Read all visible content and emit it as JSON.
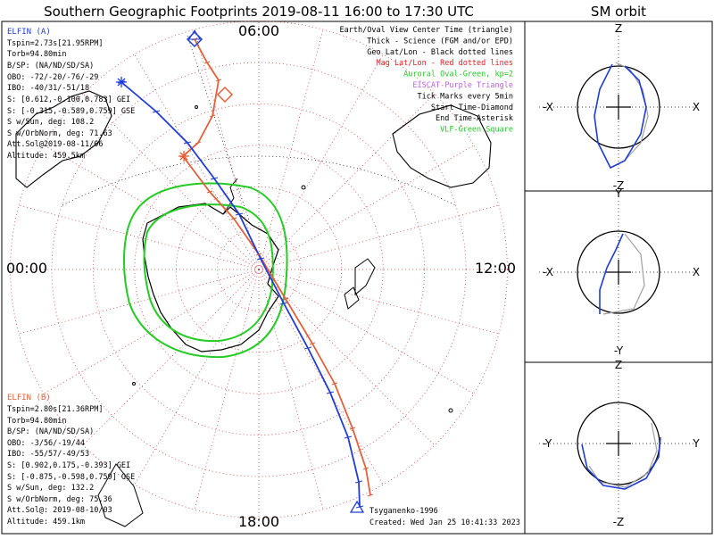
{
  "title": "Southern Geographic Footprints 2019-08-11 16:00 to 17:30 UTC",
  "orbit_title": "SM orbit",
  "colors": {
    "elfin_a": "#1f3dd6",
    "elfin_b": "#e0613a",
    "oval": "#22cc22",
    "grid": "#d04040",
    "purple": "#c060e0"
  },
  "time_labels": {
    "top": "06:00",
    "left": "00:00",
    "right": "12:00",
    "bottom": "18:00"
  },
  "legend": [
    {
      "text": "Earth/Oval View Center Time (triangle)",
      "color": "#000000"
    },
    {
      "text": "Thick - Science (FGM and/or EPD)",
      "color": "#000000"
    },
    {
      "text": "Geo Lat/Lon - Black dotted lines",
      "color": "#000000"
    },
    {
      "text": "Mag Lat/Lon - Red dotted lines",
      "color": "#e02020"
    },
    {
      "text": "Auroral Oval-Green, kp=2",
      "color": "#22cc22"
    },
    {
      "text": "EISCAT-Purple Triangle",
      "color": "#c060e0"
    },
    {
      "text": "Tick Marks every 5min",
      "color": "#000000"
    },
    {
      "text": "Start Time-Diamond",
      "color": "#000000"
    },
    {
      "text": "End Time-Asterisk",
      "color": "#000000"
    },
    {
      "text": "VLF-Green Square",
      "color": "#22cc22"
    }
  ],
  "elfin_a": {
    "name": "ELFIN (A)",
    "lines": [
      "Tspin=2.73s[21.95RPM]",
      "Torb=94.80min",
      "B/SP: (NA/ND/SD/SA)",
      "OBO: -72/-20/-76/-29",
      "IBO: -40/31/-51/18",
      "S: [0.612,-0.100,0.783] GEI",
      "S: [-0.315,-0.589,0.759] GSE",
      "S w/Sun, deg: 108.2",
      "S w/OrbNorm, deg: 71.63",
      "Att.Sol@2019-08-11/06",
      "Altitude: 459.5km"
    ]
  },
  "elfin_b": {
    "name": "ELFIN (B)",
    "lines": [
      "Tspin=2.80s[21.36RPM]",
      "Torb=94.80min",
      "B/SP: (NA/ND/SD/SA)",
      "OBO: -3/56/-19/44",
      "IBO: -55/57/-49/53",
      "S: [0.902,0.175,-0.393] GEI",
      "S: [-0.875,-0.598,0.759] GSE",
      "S w/Sun, deg: 132.2",
      "S w/OrbNorm, deg: 75.36",
      "Att.Sol@: 2019-08-10/03",
      "Altitude: 459.1km"
    ]
  },
  "footer": {
    "model": "Tsyganenko-1996",
    "created": "Created: Wed Jan 25 10:41:33 2023"
  },
  "sm_panels": [
    {
      "top": "Z",
      "bottom": "-Z",
      "left": "-X",
      "right": "X"
    },
    {
      "top": "Y",
      "bottom": "-Y",
      "left": "-X",
      "right": "X"
    },
    {
      "top": "Z",
      "bottom": "-Z",
      "left": "-Y",
      "right": "Y"
    }
  ]
}
